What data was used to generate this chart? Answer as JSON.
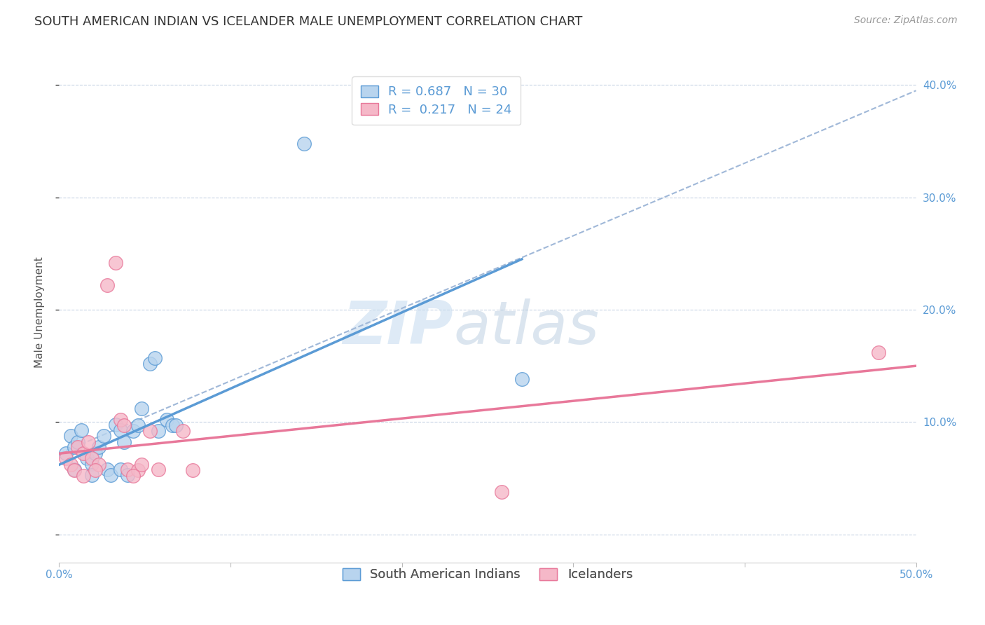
{
  "title": "SOUTH AMERICAN INDIAN VS ICELANDER MALE UNEMPLOYMENT CORRELATION CHART",
  "source": "Source: ZipAtlas.com",
  "ylabel": "Male Unemployment",
  "xlim": [
    0.0,
    0.5
  ],
  "ylim": [
    -0.025,
    0.42
  ],
  "blue_color": "#5b9bd5",
  "pink_color": "#e8789a",
  "dashed_color": "#a0b8d8",
  "blue_scatter": [
    [
      0.004,
      0.072
    ],
    [
      0.007,
      0.088
    ],
    [
      0.009,
      0.078
    ],
    [
      0.011,
      0.082
    ],
    [
      0.013,
      0.093
    ],
    [
      0.016,
      0.068
    ],
    [
      0.019,
      0.063
    ],
    [
      0.021,
      0.072
    ],
    [
      0.023,
      0.078
    ],
    [
      0.026,
      0.088
    ],
    [
      0.028,
      0.058
    ],
    [
      0.03,
      0.053
    ],
    [
      0.033,
      0.098
    ],
    [
      0.036,
      0.093
    ],
    [
      0.038,
      0.082
    ],
    [
      0.043,
      0.092
    ],
    [
      0.046,
      0.097
    ],
    [
      0.048,
      0.112
    ],
    [
      0.053,
      0.152
    ],
    [
      0.056,
      0.157
    ],
    [
      0.058,
      0.092
    ],
    [
      0.063,
      0.102
    ],
    [
      0.066,
      0.097
    ],
    [
      0.068,
      0.097
    ],
    [
      0.009,
      0.058
    ],
    [
      0.019,
      0.053
    ],
    [
      0.036,
      0.058
    ],
    [
      0.04,
      0.053
    ],
    [
      0.27,
      0.138
    ],
    [
      0.143,
      0.348
    ]
  ],
  "pink_scatter": [
    [
      0.004,
      0.068
    ],
    [
      0.007,
      0.062
    ],
    [
      0.011,
      0.078
    ],
    [
      0.014,
      0.072
    ],
    [
      0.017,
      0.082
    ],
    [
      0.019,
      0.068
    ],
    [
      0.023,
      0.062
    ],
    [
      0.028,
      0.222
    ],
    [
      0.033,
      0.242
    ],
    [
      0.036,
      0.102
    ],
    [
      0.038,
      0.097
    ],
    [
      0.04,
      0.058
    ],
    [
      0.046,
      0.057
    ],
    [
      0.048,
      0.062
    ],
    [
      0.053,
      0.092
    ],
    [
      0.058,
      0.058
    ],
    [
      0.072,
      0.092
    ],
    [
      0.078,
      0.057
    ],
    [
      0.009,
      0.057
    ],
    [
      0.014,
      0.052
    ],
    [
      0.043,
      0.052
    ],
    [
      0.258,
      0.038
    ],
    [
      0.478,
      0.162
    ],
    [
      0.021,
      0.057
    ]
  ],
  "blue_line_x": [
    0.0,
    0.27
  ],
  "blue_line_y": [
    0.062,
    0.245
  ],
  "pink_line_x": [
    0.0,
    0.5
  ],
  "pink_line_y": [
    0.072,
    0.15
  ],
  "dashed_line_x": [
    0.0,
    0.5
  ],
  "dashed_line_y": [
    0.072,
    0.395
  ],
  "watermark_zip": "ZIP",
  "watermark_atlas": "atlas",
  "background_color": "#ffffff",
  "grid_color": "#c8d4e4",
  "title_fontsize": 13,
  "axis_label_fontsize": 11,
  "tick_fontsize": 11,
  "legend_fontsize": 13,
  "source_fontsize": 10
}
